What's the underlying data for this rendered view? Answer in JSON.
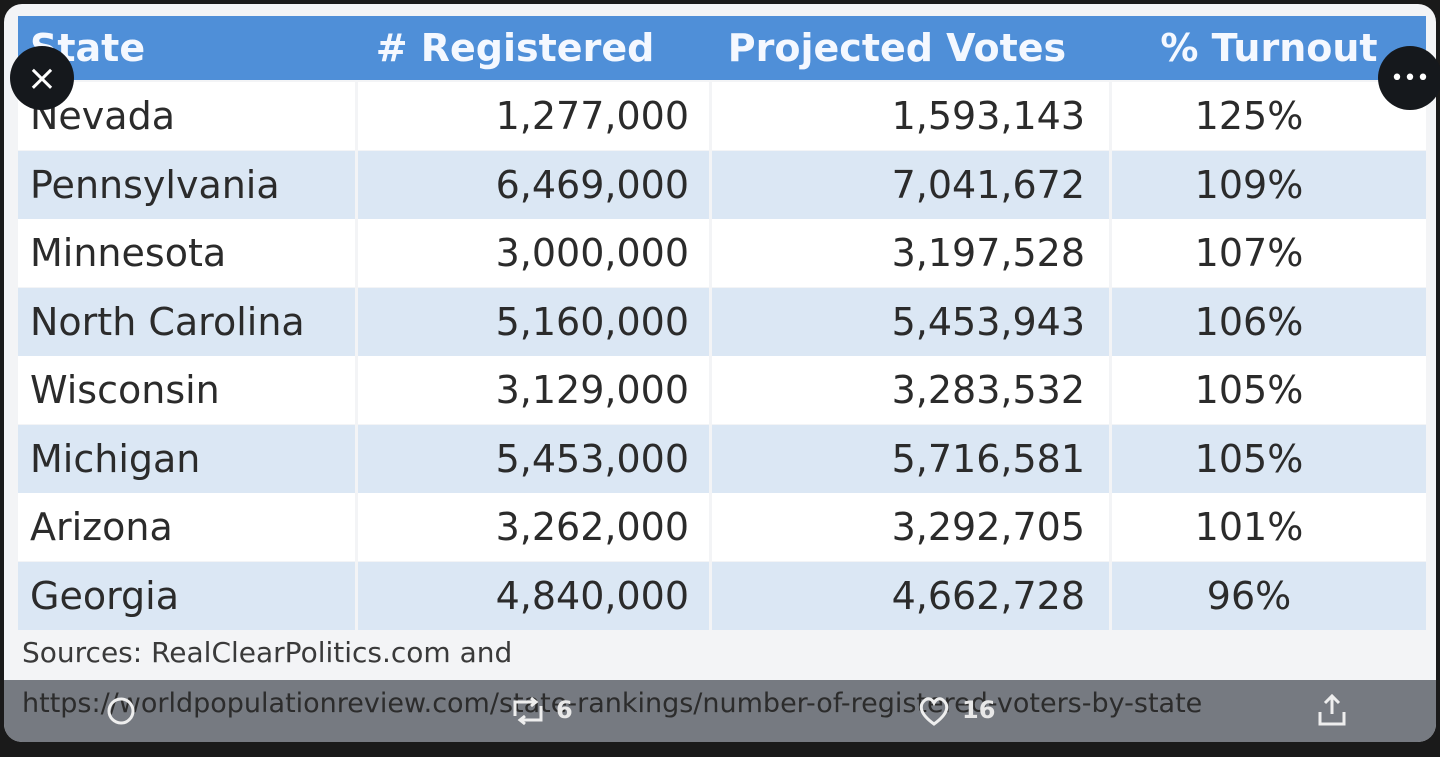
{
  "table": {
    "header": [
      "State",
      "# Registered",
      "Projected Votes",
      "% Turnout"
    ],
    "rows": [
      [
        "Nevada",
        "1,277,000",
        "1,593,143",
        "125%"
      ],
      [
        "Pennsylvania",
        "6,469,000",
        "7,041,672",
        "109%"
      ],
      [
        "Minnesota",
        "3,000,000",
        "3,197,528",
        "107%"
      ],
      [
        "North Carolina",
        "5,160,000",
        "5,453,943",
        "106%"
      ],
      [
        "Wisconsin",
        "3,129,000",
        "3,283,532",
        "105%"
      ],
      [
        "Michigan",
        "5,453,000",
        "5,716,581",
        "105%"
      ],
      [
        "Arizona",
        "3,262,000",
        "3,292,705",
        "101%"
      ],
      [
        "Georgia",
        "4,840,000",
        "4,662,728",
        "96%"
      ]
    ]
  },
  "sources": [
    "Sources: RealClearPolitics.com and",
    "https://worldpopulationreview.com/state-rankings/number-of-registered-voters-by-state"
  ],
  "actions": {
    "retweets": "6",
    "likes": "16"
  }
}
